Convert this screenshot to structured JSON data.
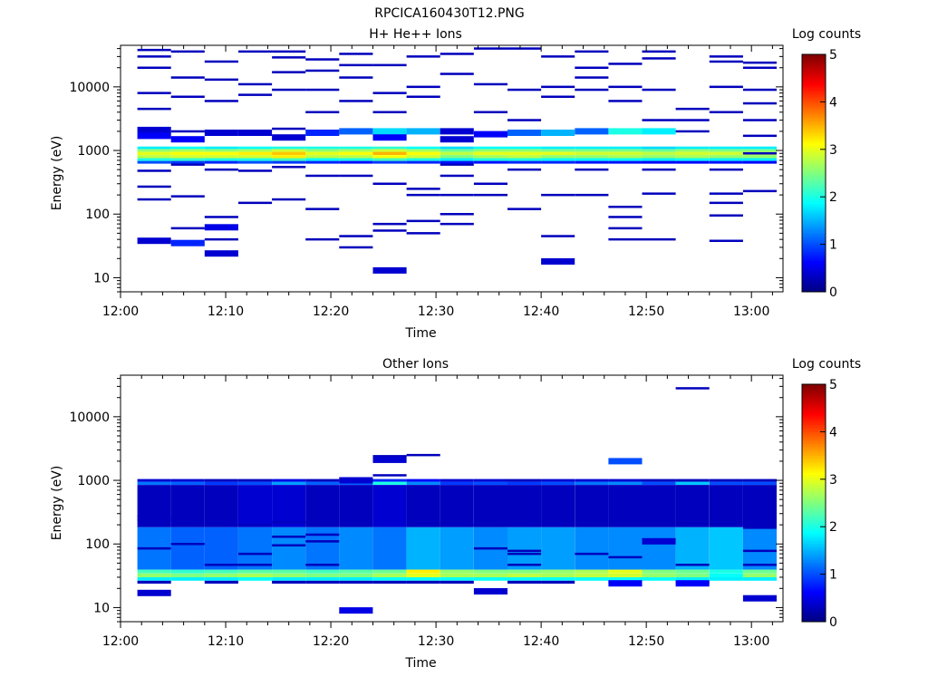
{
  "header": {
    "filename": "RPCICA160430T12.PNG"
  },
  "chart_data": [
    {
      "type": "heatmap",
      "title": "H+ He++ Ions",
      "xlabel": "Time",
      "ylabel": "Energy (eV)",
      "x_tick_labels": [
        "12:00",
        "12:10",
        "12:20",
        "12:30",
        "12:40",
        "12:50",
        "13:00"
      ],
      "x_range_minutes": [
        0,
        63
      ],
      "y_scale": "log",
      "y_range": [
        6,
        45000
      ],
      "y_tick_labels": [
        "10",
        "100",
        "1000",
        "10000"
      ],
      "colorbar": {
        "label": "Log counts",
        "range": [
          0,
          5
        ],
        "tick_labels": [
          "0",
          "1",
          "2",
          "3",
          "4",
          "5"
        ]
      },
      "columns_start_minutes": [
        1.6,
        4.8,
        8.0,
        11.2,
        14.4,
        17.6,
        20.8,
        24.0,
        27.2,
        30.4,
        33.6,
        36.8,
        40.0,
        43.2,
        46.4,
        49.6,
        52.8,
        56.0,
        59.2
      ],
      "column_width_minutes": 3.2,
      "main_band": [
        {
          "e": 1100,
          "v": [
            1.8,
            1.9,
            1.8,
            1.9,
            2.0,
            2.0,
            2.0,
            2.1,
            1.9,
            1.7,
            1.9,
            1.9,
            1.8,
            1.8,
            1.8,
            1.7,
            1.8,
            1.8,
            1.8
          ]
        },
        {
          "e": 1000,
          "v": [
            2.6,
            2.7,
            2.6,
            2.7,
            2.9,
            2.6,
            2.7,
            2.9,
            2.7,
            2.4,
            2.6,
            2.6,
            2.5,
            2.5,
            2.5,
            2.4,
            2.6,
            2.5,
            2.5
          ]
        },
        {
          "e": 900,
          "v": [
            3.0,
            3.1,
            3.1,
            3.2,
            3.4,
            3.0,
            3.1,
            3.5,
            3.1,
            2.8,
            3.0,
            3.0,
            3.0,
            2.9,
            2.9,
            2.8,
            2.9,
            2.9,
            2.9
          ]
        },
        {
          "e": 800,
          "v": [
            2.8,
            2.9,
            2.9,
            2.9,
            3.2,
            2.8,
            2.8,
            3.1,
            2.9,
            2.5,
            2.7,
            2.8,
            2.6,
            2.6,
            2.7,
            2.6,
            2.7,
            2.6,
            2.6
          ]
        },
        {
          "e": 720,
          "v": [
            2.0,
            2.1,
            2.0,
            2.0,
            2.2,
            1.9,
            2.0,
            2.2,
            2.0,
            1.8,
            2.0,
            2.0,
            1.9,
            1.9,
            1.9,
            1.8,
            1.9,
            1.8,
            1.8
          ]
        },
        {
          "e": 650,
          "v": [
            1.0,
            0.9,
            0.8,
            1.0,
            0.9,
            0.8,
            0.7,
            0.9,
            0.8,
            0.7,
            0.7,
            0.8,
            0.8,
            0.7,
            0.7,
            0.6,
            0.6,
            0.7,
            0.6
          ]
        }
      ],
      "scatter": [
        [
          0,
          38000,
          0.3
        ],
        [
          0,
          30000,
          0.3
        ],
        [
          0,
          20000,
          0.3
        ],
        [
          0,
          8000,
          0.3
        ],
        [
          0,
          4500,
          0.3
        ],
        [
          0,
          2100,
          0.4
        ],
        [
          0,
          1700,
          0.6
        ],
        [
          0,
          480,
          0.3
        ],
        [
          0,
          270,
          0.3
        ],
        [
          0,
          170,
          0.3
        ],
        [
          0,
          38,
          0.4
        ],
        [
          1,
          36000,
          0.3
        ],
        [
          1,
          14000,
          0.3
        ],
        [
          1,
          7000,
          0.3
        ],
        [
          1,
          2000,
          0.3
        ],
        [
          1,
          1500,
          0.6
        ],
        [
          1,
          600,
          0.3
        ],
        [
          1,
          190,
          0.3
        ],
        [
          1,
          60,
          0.3
        ],
        [
          1,
          35,
          0.8
        ],
        [
          2,
          25000,
          0.3
        ],
        [
          2,
          13000,
          0.3
        ],
        [
          2,
          6000,
          0.3
        ],
        [
          2,
          1900,
          0.4
        ],
        [
          2,
          500,
          0.3
        ],
        [
          2,
          90,
          0.3
        ],
        [
          2,
          62,
          0.5
        ],
        [
          2,
          40,
          0.3
        ],
        [
          2,
          24,
          0.4
        ],
        [
          3,
          36000,
          0.3
        ],
        [
          3,
          11000,
          0.3
        ],
        [
          3,
          7500,
          0.3
        ],
        [
          3,
          1900,
          0.4
        ],
        [
          3,
          480,
          0.3
        ],
        [
          3,
          150,
          0.3
        ],
        [
          4,
          36000,
          0.3
        ],
        [
          4,
          29000,
          0.3
        ],
        [
          4,
          17000,
          0.3
        ],
        [
          4,
          9000,
          0.3
        ],
        [
          4,
          2200,
          0.3
        ],
        [
          4,
          1600,
          0.4
        ],
        [
          4,
          550,
          0.3
        ],
        [
          4,
          170,
          0.3
        ],
        [
          5,
          27000,
          0.3
        ],
        [
          5,
          18000,
          0.3
        ],
        [
          5,
          9000,
          0.3
        ],
        [
          5,
          4000,
          0.3
        ],
        [
          5,
          1900,
          0.8
        ],
        [
          5,
          400,
          0.3
        ],
        [
          5,
          120,
          0.3
        ],
        [
          5,
          40,
          0.3
        ],
        [
          6,
          33000,
          0.3
        ],
        [
          6,
          22000,
          0.3
        ],
        [
          6,
          14000,
          0.3
        ],
        [
          6,
          6000,
          0.3
        ],
        [
          6,
          2000,
          1.1
        ],
        [
          6,
          400,
          0.3
        ],
        [
          6,
          45,
          0.3
        ],
        [
          6,
          30,
          0.3
        ],
        [
          7,
          22000,
          0.3
        ],
        [
          7,
          8000,
          0.3
        ],
        [
          7,
          4000,
          0.3
        ],
        [
          7,
          2000,
          1.7
        ],
        [
          7,
          1600,
          0.6
        ],
        [
          7,
          300,
          0.3
        ],
        [
          7,
          70,
          0.3
        ],
        [
          7,
          55,
          0.3
        ],
        [
          7,
          13,
          0.4
        ],
        [
          8,
          30000,
          0.3
        ],
        [
          8,
          10000,
          0.3
        ],
        [
          8,
          7000,
          0.3
        ],
        [
          8,
          2000,
          1.5
        ],
        [
          8,
          250,
          0.3
        ],
        [
          8,
          200,
          0.3
        ],
        [
          8,
          78,
          0.3
        ],
        [
          8,
          50,
          0.3
        ],
        [
          9,
          33000,
          0.3
        ],
        [
          9,
          16000,
          0.3
        ],
        [
          9,
          2000,
          0.4
        ],
        [
          9,
          1500,
          0.4
        ],
        [
          9,
          600,
          0.3
        ],
        [
          9,
          400,
          0.3
        ],
        [
          9,
          200,
          0.3
        ],
        [
          9,
          100,
          0.3
        ],
        [
          9,
          70,
          0.3
        ],
        [
          10,
          40000,
          0.3
        ],
        [
          10,
          11000,
          0.3
        ],
        [
          10,
          4000,
          0.3
        ],
        [
          10,
          1800,
          0.6
        ],
        [
          10,
          300,
          0.3
        ],
        [
          10,
          200,
          0.3
        ],
        [
          11,
          40000,
          0.3
        ],
        [
          11,
          9000,
          0.3
        ],
        [
          11,
          3000,
          0.3
        ],
        [
          11,
          1900,
          1.1
        ],
        [
          11,
          500,
          0.3
        ],
        [
          11,
          120,
          0.3
        ],
        [
          12,
          30000,
          0.3
        ],
        [
          12,
          10000,
          0.3
        ],
        [
          12,
          7000,
          0.3
        ],
        [
          12,
          1900,
          1.5
        ],
        [
          12,
          200,
          0.3
        ],
        [
          12,
          45,
          0.3
        ],
        [
          12,
          18,
          0.4
        ],
        [
          13,
          36000,
          0.3
        ],
        [
          13,
          20000,
          0.3
        ],
        [
          13,
          14000,
          0.3
        ],
        [
          13,
          9000,
          0.3
        ],
        [
          13,
          2000,
          1.1
        ],
        [
          13,
          500,
          0.3
        ],
        [
          13,
          200,
          0.3
        ],
        [
          14,
          23000,
          0.3
        ],
        [
          14,
          10000,
          0.3
        ],
        [
          14,
          6000,
          0.3
        ],
        [
          14,
          2000,
          2.0
        ],
        [
          14,
          130,
          0.3
        ],
        [
          14,
          90,
          0.3
        ],
        [
          14,
          60,
          0.3
        ],
        [
          14,
          40,
          0.3
        ],
        [
          15,
          36000,
          0.3
        ],
        [
          15,
          28000,
          0.3
        ],
        [
          15,
          9000,
          0.3
        ],
        [
          15,
          3000,
          0.3
        ],
        [
          15,
          2000,
          1.8
        ],
        [
          15,
          500,
          0.3
        ],
        [
          15,
          210,
          0.3
        ],
        [
          15,
          40,
          0.3
        ],
        [
          16,
          4500,
          0.3
        ],
        [
          16,
          3000,
          0.3
        ],
        [
          16,
          2000,
          0.3
        ],
        [
          17,
          30000,
          0.3
        ],
        [
          17,
          25000,
          0.3
        ],
        [
          17,
          10000,
          0.3
        ],
        [
          17,
          4000,
          0.3
        ],
        [
          17,
          500,
          0.3
        ],
        [
          17,
          210,
          0.3
        ],
        [
          17,
          150,
          0.3
        ],
        [
          17,
          95,
          0.3
        ],
        [
          17,
          38,
          0.3
        ],
        [
          18,
          24000,
          0.3
        ],
        [
          18,
          20000,
          0.3
        ],
        [
          18,
          9000,
          0.3
        ],
        [
          18,
          5500,
          0.3
        ],
        [
          18,
          3000,
          0.3
        ],
        [
          18,
          1700,
          0.3
        ],
        [
          18,
          900,
          0.3
        ],
        [
          18,
          230,
          0.3
        ]
      ]
    },
    {
      "type": "heatmap",
      "title": "Other Ions",
      "xlabel": "Time",
      "ylabel": "Energy (eV)",
      "x_tick_labels": [
        "12:00",
        "12:10",
        "12:20",
        "12:30",
        "12:40",
        "12:50",
        "13:00"
      ],
      "x_range_minutes": [
        0,
        63
      ],
      "y_scale": "log",
      "y_range": [
        6,
        45000
      ],
      "y_tick_labels": [
        "10",
        "100",
        "1000",
        "10000"
      ],
      "colorbar": {
        "label": "Log counts",
        "range": [
          0,
          5
        ],
        "tick_labels": [
          "0",
          "1",
          "2",
          "3",
          "4",
          "5"
        ]
      },
      "columns_start_minutes": [
        1.6,
        4.8,
        8.0,
        11.2,
        14.4,
        17.6,
        20.8,
        24.0,
        27.2,
        30.4,
        33.6,
        36.8,
        40.0,
        43.2,
        46.4,
        49.6,
        52.8,
        56.0,
        59.2
      ],
      "column_width_minutes": 3.2,
      "main_band": [
        {
          "e": 1000,
          "v": [
            0.4,
            0.4,
            0.3,
            0.3,
            0.5,
            0.3,
            0.3,
            0.8,
            0.6,
            0.4,
            0.4,
            0.3,
            0.4,
            0.4,
            0.4,
            0.3,
            0.3,
            0.3,
            0.3
          ]
        },
        {
          "e": 900,
          "v": [
            1.2,
            1.1,
            0.9,
            1.0,
            1.4,
            1.1,
            1.1,
            2.0,
            1.3,
            0.9,
            1.0,
            0.9,
            1.0,
            1.2,
            1.3,
            1.0,
            1.6,
            1.0,
            1.0
          ]
        },
        {
          "e": 800,
          "v": [
            0.3,
            0.3,
            0.3,
            0.4,
            0.4,
            0.3,
            0.3,
            0.4,
            0.3,
            0.3,
            0.3,
            0.3,
            0.3,
            0.3,
            0.3,
            0.3,
            0.3,
            0.3,
            0.3
          ]
        },
        {
          "e": 42,
          "v": [
            1.2,
            1.1,
            1.1,
            1.2,
            1.3,
            1.2,
            1.3,
            1.2,
            1.5,
            1.4,
            1.3,
            1.4,
            1.4,
            1.3,
            1.3,
            1.3,
            1.5,
            1.6,
            1.3
          ]
        },
        {
          "e": 37,
          "v": [
            2.2,
            2.1,
            2.2,
            2.3,
            2.3,
            2.2,
            2.3,
            2.4,
            3.2,
            2.6,
            2.5,
            2.5,
            2.6,
            2.7,
            3.0,
            2.5,
            2.4,
            2.0,
            2.4
          ]
        },
        {
          "e": 32,
          "v": [
            2.6,
            2.5,
            2.6,
            2.7,
            2.6,
            2.5,
            2.5,
            2.7,
            3.0,
            2.7,
            2.7,
            2.8,
            2.7,
            2.8,
            2.9,
            2.6,
            2.5,
            1.9,
            2.6
          ]
        },
        {
          "e": 28,
          "v": [
            1.8,
            1.8,
            1.8,
            1.9,
            1.8,
            1.8,
            1.8,
            1.9,
            1.9,
            1.9,
            1.9,
            1.9,
            1.9,
            1.9,
            1.9,
            1.9,
            1.8,
            1.8,
            1.8
          ]
        },
        {
          "e": 25,
          "v": [
            0.3,
            0.0,
            0.3,
            0.0,
            0.3,
            0.3,
            0.3,
            0.3,
            0.3,
            0.3,
            0.0,
            0.3,
            0.3,
            0.0,
            0.6,
            0.0,
            0.6,
            0.0,
            0.0
          ]
        }
      ],
      "scatter": [
        [
          0,
          270,
          0.3
        ],
        [
          0,
          240,
          0.3
        ],
        [
          0,
          85,
          0.3
        ],
        [
          0,
          17,
          0.4
        ],
        [
          1,
          100,
          0.3
        ],
        [
          2,
          47,
          0.3
        ],
        [
          3,
          200,
          0.3
        ],
        [
          3,
          70,
          0.3
        ],
        [
          3,
          47,
          0.3
        ],
        [
          4,
          220,
          0.3
        ],
        [
          4,
          130,
          0.3
        ],
        [
          4,
          95,
          0.3
        ],
        [
          5,
          140,
          0.3
        ],
        [
          5,
          110,
          0.3
        ],
        [
          5,
          47,
          0.3
        ],
        [
          6,
          1000,
          0.4
        ],
        [
          6,
          9,
          0.5
        ],
        [
          7,
          2400,
          0.3
        ],
        [
          7,
          2100,
          0.4
        ],
        [
          7,
          1200,
          0.3
        ],
        [
          8,
          2500,
          0.3
        ],
        [
          9,
          200,
          0.3
        ],
        [
          10,
          85,
          0.3
        ],
        [
          10,
          18,
          0.4
        ],
        [
          11,
          200,
          0.3
        ],
        [
          11,
          78,
          0.3
        ],
        [
          11,
          70,
          0.3
        ],
        [
          11,
          47,
          0.3
        ],
        [
          13,
          70,
          0.3
        ],
        [
          14,
          2000,
          1.0
        ],
        [
          14,
          62,
          0.3
        ],
        [
          14,
          24,
          0.6
        ],
        [
          15,
          110,
          0.4
        ],
        [
          16,
          28000,
          0.3
        ],
        [
          16,
          47,
          0.3
        ],
        [
          16,
          24,
          0.6
        ],
        [
          18,
          180,
          0.3
        ],
        [
          18,
          78,
          0.3
        ],
        [
          18,
          47,
          0.3
        ],
        [
          18,
          14,
          0.4
        ]
      ]
    }
  ]
}
